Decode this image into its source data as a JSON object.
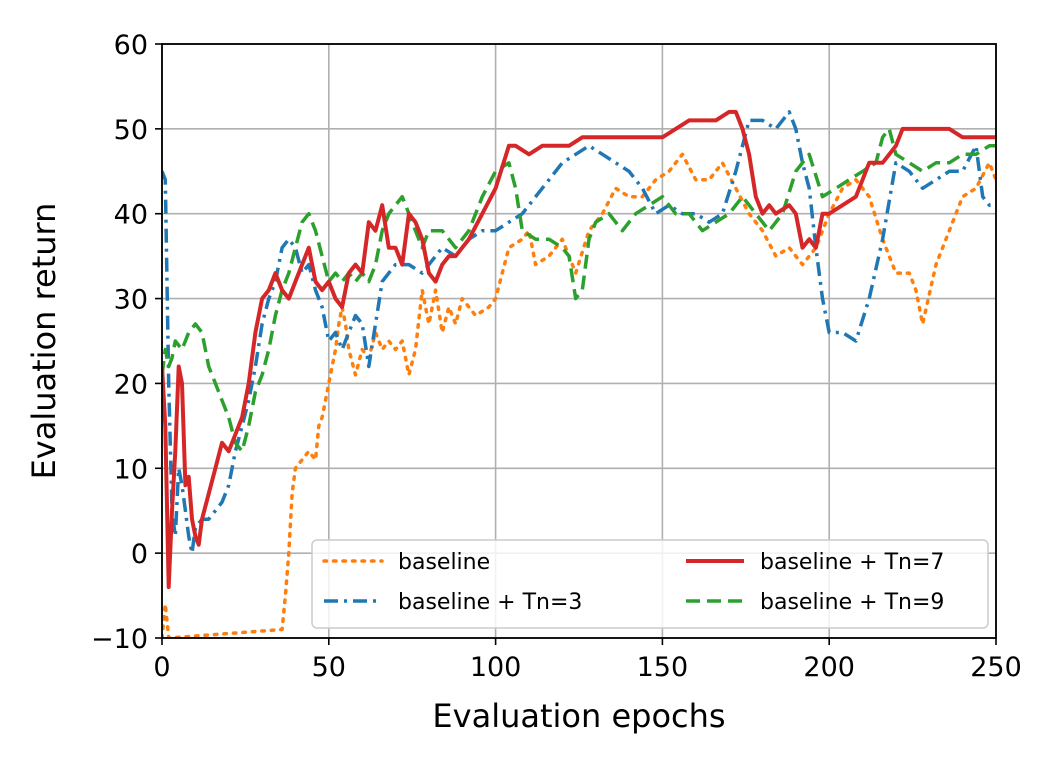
{
  "chart_data": {
    "type": "line",
    "title": "",
    "xlabel": "Evaluation epochs",
    "ylabel": "Evaluation return",
    "xlim": [
      0,
      250
    ],
    "ylim": [
      -10,
      60
    ],
    "xticks": [
      0,
      50,
      100,
      150,
      200,
      250
    ],
    "yticks": [
      -10,
      0,
      10,
      20,
      30,
      40,
      50,
      60
    ],
    "xtick_labels": [
      "0",
      "50",
      "100",
      "150",
      "200",
      "250"
    ],
    "ytick_labels": [
      "−10",
      "0",
      "10",
      "20",
      "30",
      "40",
      "50",
      "60"
    ],
    "grid": true,
    "legend_position": "lower-right",
    "series": [
      {
        "name": "baseline",
        "color": "#ff7f0e",
        "style": "dotted",
        "x": [
          0,
          1,
          2,
          36,
          37,
          38,
          39,
          40,
          42,
          44,
          46,
          47,
          48,
          49,
          50,
          51,
          52,
          53,
          54,
          55,
          56,
          58,
          60,
          62,
          64,
          66,
          68,
          70,
          72,
          74,
          76,
          78,
          80,
          82,
          84,
          86,
          88,
          90,
          94,
          98,
          100,
          104,
          108,
          110,
          112,
          116,
          120,
          124,
          128,
          132,
          136,
          140,
          144,
          148,
          152,
          156,
          160,
          164,
          168,
          172,
          176,
          180,
          184,
          188,
          192,
          196,
          200,
          204,
          208,
          212,
          216,
          220,
          224,
          226,
          228,
          232,
          236,
          240,
          244,
          248,
          250
        ],
        "values": [
          -10,
          -6,
          -10,
          -9,
          -5,
          0,
          7,
          10,
          11,
          12,
          11,
          15,
          16,
          18,
          20,
          22,
          24,
          27,
          29,
          27,
          24,
          21,
          24,
          23,
          26,
          24,
          25,
          24,
          25,
          21,
          24,
          31,
          27,
          31,
          26,
          29,
          27,
          30,
          28,
          29,
          30,
          36,
          37,
          38,
          34,
          35,
          37,
          33,
          38,
          40,
          43,
          42,
          42,
          44,
          45,
          47,
          44,
          44,
          46,
          43,
          40,
          38,
          35,
          36,
          34,
          36,
          40,
          43,
          44,
          42,
          37,
          33,
          33,
          31,
          27,
          34,
          38,
          42,
          43,
          46,
          44
        ]
      },
      {
        "name": "baseline + Tn=3",
        "color": "#1f77b4",
        "style": "dashdot",
        "x": [
          0,
          1,
          2,
          3,
          4,
          5,
          6,
          7,
          8,
          9,
          10,
          12,
          14,
          16,
          18,
          20,
          22,
          24,
          26,
          28,
          30,
          32,
          34,
          36,
          38,
          40,
          42,
          44,
          46,
          48,
          50,
          52,
          54,
          56,
          58,
          60,
          62,
          64,
          66,
          68,
          70,
          74,
          78,
          80,
          84,
          88,
          92,
          96,
          100,
          104,
          108,
          112,
          116,
          120,
          124,
          128,
          132,
          136,
          140,
          144,
          148,
          152,
          156,
          160,
          164,
          168,
          172,
          174,
          176,
          180,
          184,
          188,
          190,
          192,
          194,
          196,
          198,
          200,
          204,
          208,
          212,
          216,
          220,
          224,
          228,
          232,
          236,
          240,
          244,
          246,
          248,
          250
        ],
        "values": [
          45,
          44,
          20,
          5,
          2,
          10,
          8,
          5,
          2,
          0,
          3,
          4,
          4,
          5,
          6,
          8,
          12,
          15,
          18,
          22,
          27,
          30,
          32,
          36,
          37,
          36,
          33,
          34,
          31,
          29,
          25,
          26,
          24,
          26,
          28,
          27,
          22,
          27,
          32,
          33,
          34,
          34,
          33,
          34,
          36,
          35,
          37,
          38,
          38,
          39,
          40,
          42,
          44,
          46,
          47,
          48,
          47,
          46,
          45,
          43,
          40,
          41,
          40,
          40,
          39,
          40,
          45,
          48,
          51,
          51,
          50,
          52,
          50,
          46,
          43,
          36,
          30,
          26,
          26,
          25,
          30,
          37,
          46,
          45,
          43,
          44,
          45,
          45,
          48,
          42,
          41,
          41
        ]
      },
      {
        "name": "baseline + Tn=7",
        "color": "#d62728",
        "style": "solid",
        "x": [
          0,
          1,
          2,
          3,
          4,
          5,
          6,
          7,
          8,
          9,
          10,
          11,
          12,
          14,
          16,
          18,
          20,
          22,
          24,
          26,
          28,
          30,
          32,
          34,
          36,
          38,
          40,
          42,
          44,
          46,
          48,
          50,
          52,
          54,
          56,
          58,
          60,
          62,
          64,
          66,
          68,
          70,
          72,
          74,
          76,
          78,
          80,
          82,
          84,
          86,
          88,
          90,
          92,
          96,
          100,
          104,
          106,
          110,
          114,
          118,
          122,
          126,
          130,
          134,
          138,
          142,
          146,
          150,
          154,
          158,
          162,
          166,
          170,
          172,
          174,
          176,
          178,
          180,
          182,
          184,
          188,
          190,
          192,
          194,
          196,
          198,
          200,
          204,
          208,
          212,
          216,
          220,
          222,
          224,
          228,
          232,
          236,
          240,
          244,
          248,
          250
        ],
        "values": [
          22,
          15,
          -4,
          5,
          12,
          22,
          20,
          8,
          9,
          4,
          2,
          1,
          4,
          7,
          10,
          13,
          12,
          14,
          16,
          20,
          26,
          30,
          31,
          33,
          31,
          30,
          32,
          34,
          36,
          32,
          31,
          32,
          30,
          29,
          33,
          34,
          33,
          39,
          38,
          41,
          36,
          36,
          34,
          40,
          39,
          37,
          33,
          32,
          34,
          35,
          35,
          36,
          37,
          40,
          43,
          48,
          48,
          47,
          48,
          48,
          48,
          49,
          49,
          49,
          49,
          49,
          49,
          49,
          50,
          51,
          51,
          51,
          52,
          52,
          50,
          47,
          42,
          40,
          41,
          40,
          41,
          40,
          36,
          37,
          36,
          40,
          40,
          41,
          42,
          46,
          46,
          48,
          50,
          50,
          50,
          50,
          50,
          49,
          49,
          49,
          49
        ]
      },
      {
        "name": "baseline + Tn=9",
        "color": "#2ca02c",
        "style": "dashed",
        "x": [
          0,
          1,
          2,
          3,
          4,
          6,
          8,
          10,
          12,
          14,
          16,
          18,
          20,
          22,
          24,
          26,
          28,
          30,
          32,
          34,
          36,
          38,
          40,
          42,
          44,
          46,
          48,
          50,
          52,
          54,
          56,
          58,
          60,
          62,
          64,
          66,
          68,
          70,
          72,
          74,
          76,
          78,
          80,
          84,
          88,
          92,
          96,
          100,
          104,
          106,
          108,
          112,
          116,
          120,
          122,
          124,
          126,
          128,
          130,
          134,
          138,
          142,
          146,
          150,
          154,
          158,
          162,
          166,
          170,
          174,
          178,
          182,
          186,
          190,
          194,
          198,
          202,
          206,
          210,
          214,
          216,
          218,
          220,
          224,
          228,
          232,
          236,
          240,
          244,
          248,
          250
        ],
        "values": [
          21,
          24,
          22,
          23,
          25,
          24,
          26,
          27,
          26,
          22,
          20,
          18,
          16,
          13,
          12,
          15,
          19,
          21,
          24,
          28,
          31,
          33,
          36,
          39,
          40,
          38,
          35,
          32,
          33,
          32,
          33,
          32,
          33,
          32,
          34,
          38,
          40,
          41,
          42,
          40,
          38,
          36,
          38,
          38,
          36,
          38,
          42,
          45,
          46,
          43,
          38,
          37,
          37,
          36,
          35,
          30,
          31,
          37,
          39,
          40,
          38,
          40,
          41,
          42,
          40,
          40,
          38,
          39,
          40,
          42,
          40,
          38,
          40,
          45,
          47,
          42,
          43,
          44,
          45,
          46,
          49,
          50,
          47,
          46,
          45,
          46,
          46,
          47,
          47,
          48,
          48
        ]
      }
    ]
  }
}
